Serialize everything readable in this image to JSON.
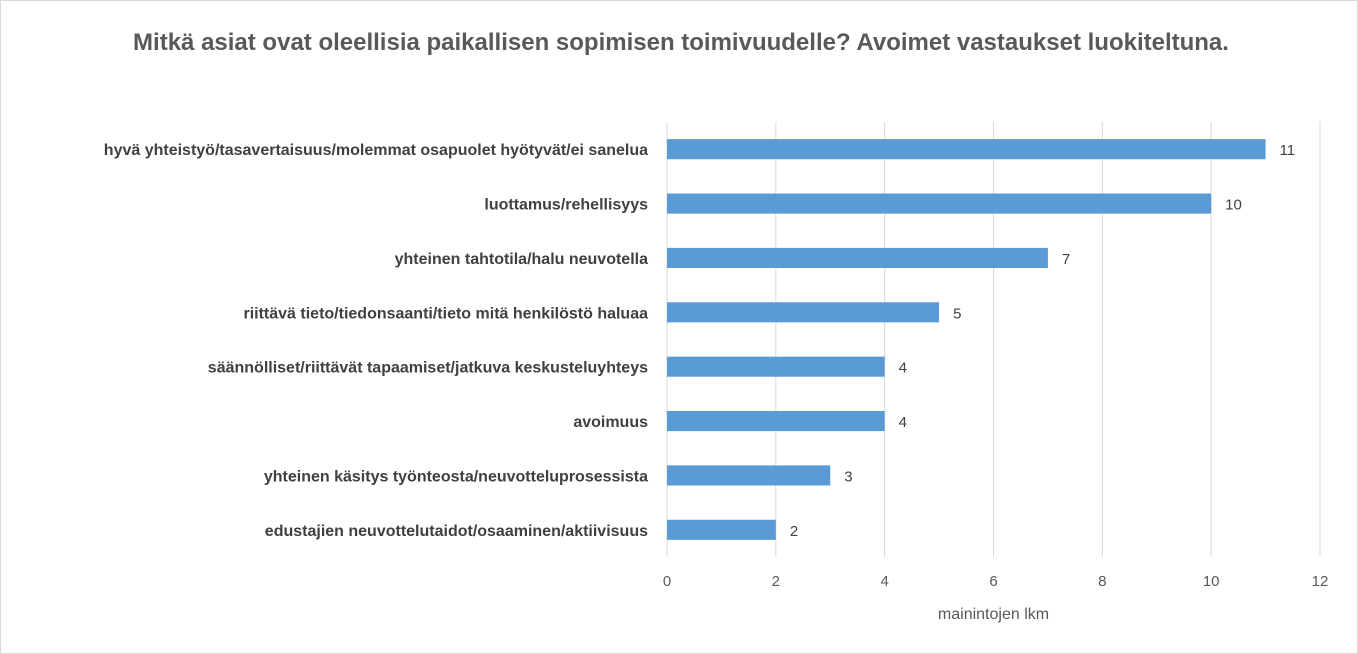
{
  "chart_data": {
    "type": "bar",
    "orientation": "horizontal",
    "title": "Mitkä asiat ovat oleellisia paikallisen sopimisen toimivuudelle? Avoimet vastaukset luokiteltuna.",
    "xlabel": "mainintojen lkm",
    "ylabel": "",
    "xlim": [
      0,
      12
    ],
    "xticks": [
      0,
      2,
      4,
      6,
      8,
      10,
      12
    ],
    "grid": true,
    "bar_color": "#5b9bd5",
    "categories": [
      "hyvä yhteistyö/tasavertaisuus/molemmat  osapuolet hyötyvät/ei sanelua",
      "luottamus/rehellisyys",
      "yhteinen tahtotila/halu  neuvotella",
      "riittävä tieto/tiedonsaanti/tieto  mitä henkilöstö haluaa",
      "säännölliset/riittävät  tapaamiset/jatkuva  keskusteluyhteys",
      "avoimuus",
      "yhteinen käsitys työnteosta/neuvotteluprosessista",
      "edustajien neuvottelutaidot/osaaminen/aktiivisuus"
    ],
    "values": [
      11,
      10,
      7,
      5,
      4,
      4,
      3,
      2
    ]
  }
}
